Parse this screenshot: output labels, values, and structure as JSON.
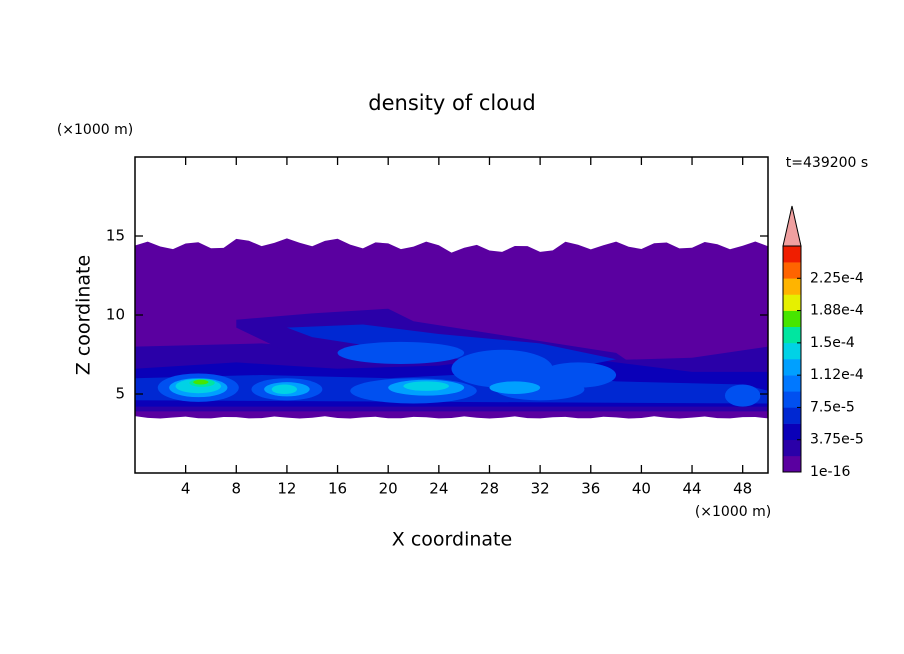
{
  "chart_data": {
    "type": "contour",
    "title": "density of cloud",
    "x_label": "X coordinate",
    "y_label": "Z coordinate",
    "x_unit": "(×1000 m)",
    "y_unit": "(×1000 m)",
    "time_label": "t=439200 s",
    "xlim": [
      0,
      50
    ],
    "ylim": [
      0,
      20
    ],
    "xticks": [
      4,
      8,
      12,
      16,
      20,
      24,
      28,
      32,
      36,
      40,
      44,
      48
    ],
    "yticks": [
      5,
      10,
      15
    ],
    "colorbar": {
      "clim": [
        1e-16,
        0.0002625
      ],
      "ticks": [
        1e-16,
        {
          "value": 3.75e-05,
          "label": "3.75e-5"
        },
        {
          "value": 7.5e-05,
          "label": "7.5e-5"
        },
        {
          "value": 0.0001125,
          "label": "1.12e-4"
        },
        {
          "value": 0.00015,
          "label": "1.5e-4"
        },
        {
          "value": 0.0001875,
          "label": "1.88e-4"
        },
        {
          "value": 0.000225,
          "label": "2.25e-4"
        }
      ],
      "colors": [
        "#5a00a0",
        "#2a00a8",
        "#0a00b8",
        "#0028d2",
        "#0050f0",
        "#0078ff",
        "#00a0ff",
        "#00d2e6",
        "#00e6a0",
        "#46e600",
        "#e6f000",
        "#ffb400",
        "#ff6400",
        "#f01e00"
      ],
      "extend_color": "#f0a0a0"
    }
  }
}
